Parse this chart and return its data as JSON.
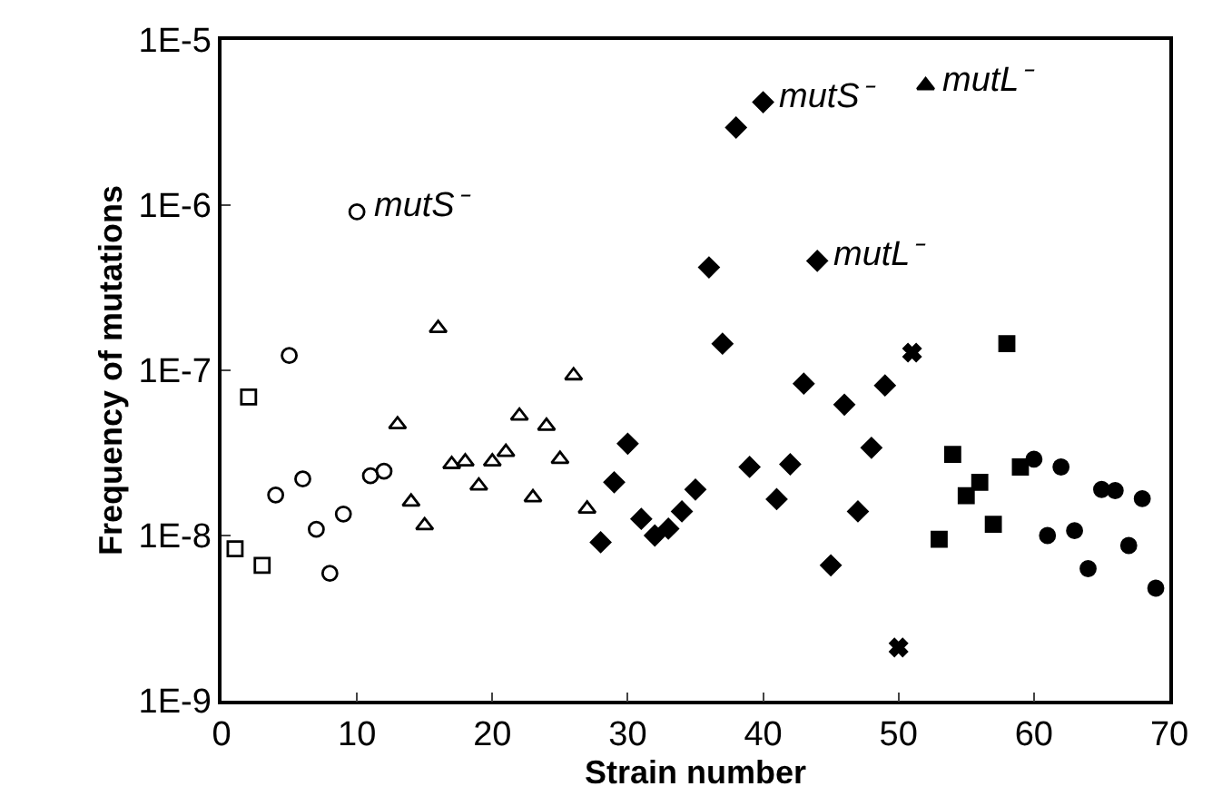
{
  "chart_data": {
    "type": "scatter",
    "xlabel": "Strain number",
    "ylabel": "Frequency of mutations",
    "log": "y",
    "xlim": [
      0,
      70
    ],
    "xticks": [
      0,
      10,
      20,
      30,
      40,
      50,
      60,
      70
    ],
    "ylim": [
      1e-09,
      1e-05
    ],
    "yticks": [
      {
        "value": 1e-09,
        "label": "1E-9"
      },
      {
        "value": 1e-08,
        "label": "1E-8"
      },
      {
        "value": 1e-07,
        "label": "1E-7"
      },
      {
        "value": 1e-06,
        "label": "1E-6"
      },
      {
        "value": 1e-05,
        "label": "1E-5"
      }
    ],
    "series": [
      {
        "color": "#000000",
        "marker": "square-open",
        "x": [
          1,
          2,
          3
        ],
        "values": [
          8.3e-09,
          6.9e-08,
          6.6e-09
        ]
      },
      {
        "color": "#000000",
        "marker": "circle-open",
        "x": [
          4,
          5,
          6,
          7,
          8,
          9,
          10,
          11,
          12
        ],
        "values": [
          1.76e-08,
          1.23e-07,
          2.2e-08,
          1.09e-08,
          5.9e-09,
          1.35e-08,
          9.1e-07,
          2.3e-08,
          2.45e-08
        ]
      },
      {
        "color": "#000000",
        "marker": "triangle-open",
        "x": [
          13,
          14,
          15,
          16,
          17,
          18,
          19,
          20,
          21,
          22,
          23,
          24,
          25,
          26,
          27
        ],
        "values": [
          4.7e-08,
          1.6e-08,
          1.15e-08,
          1.8e-07,
          2.7e-08,
          2.8e-08,
          2e-08,
          2.8e-08,
          3.2e-08,
          5.3e-08,
          1.7e-08,
          4.6e-08,
          2.9e-08,
          9.3e-08,
          1.45e-08
        ]
      },
      {
        "color": "#000000",
        "marker": "diamond",
        "x": [
          28,
          29,
          30,
          31,
          32,
          33,
          34,
          35,
          36,
          37,
          38,
          39,
          40,
          41,
          42,
          43,
          44,
          45,
          46,
          47,
          48,
          49
        ],
        "values": [
          9.1e-09,
          2.1e-08,
          3.6e-08,
          1.26e-08,
          1e-08,
          1.1e-08,
          1.4e-08,
          1.9e-08,
          4.2e-07,
          1.45e-07,
          2.95e-06,
          2.6e-08,
          4.2e-06,
          1.66e-08,
          2.7e-08,
          8.3e-08,
          4.6e-07,
          6.6e-09,
          6.2e-08,
          1.4e-08,
          3.4e-08,
          8.1e-08
        ]
      },
      {
        "color": "#000000",
        "marker": "cross",
        "x": [
          50,
          51
        ],
        "values": [
          2.1e-09,
          1.28e-07
        ]
      },
      {
        "color": "#000000",
        "marker": "triangle",
        "x": [
          52
        ],
        "values": [
          5.3e-06
        ]
      },
      {
        "color": "#000000",
        "marker": "square",
        "x": [
          53,
          54,
          55,
          56,
          57,
          58,
          59
        ],
        "values": [
          9.5e-09,
          3.1e-08,
          1.74e-08,
          2.1e-08,
          1.17e-08,
          1.45e-07,
          2.6e-08
        ]
      },
      {
        "color": "#000000",
        "marker": "circle",
        "x": [
          60,
          61,
          62,
          63,
          64,
          65,
          66,
          67,
          68,
          69
        ],
        "values": [
          2.9e-08,
          1e-08,
          2.6e-08,
          1.07e-08,
          6.3e-09,
          1.9e-08,
          1.87e-08,
          8.7e-09,
          1.67e-08,
          4.8e-09
        ]
      }
    ],
    "annotations": [
      {
        "text": "mutS⁻",
        "x": 10,
        "y": 9.1e-07
      },
      {
        "text": "mutS⁻",
        "x": 40,
        "y": 4.2e-06
      },
      {
        "text": "mutL⁻",
        "x": 52,
        "y": 5.3e-06
      },
      {
        "text": "mutL⁻",
        "x": 44,
        "y": 4.6e-07
      }
    ]
  }
}
